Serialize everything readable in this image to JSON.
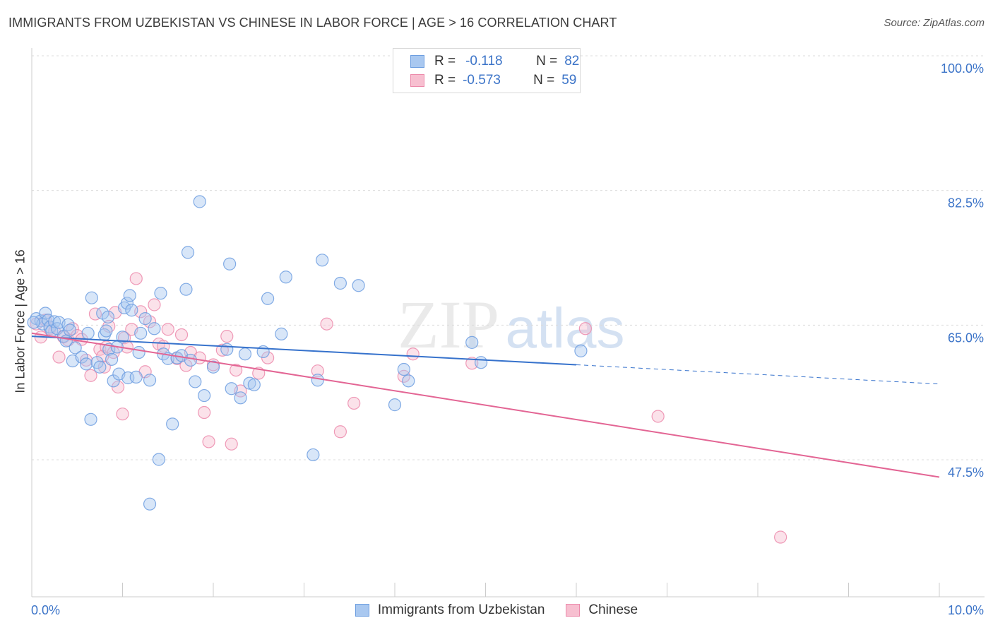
{
  "title": "IMMIGRANTS FROM UZBEKISTAN VS CHINESE IN LABOR FORCE | AGE > 16 CORRELATION CHART",
  "source": "Source: ZipAtlas.com",
  "watermark": {
    "zip": "ZIP",
    "atlas": "atlas"
  },
  "stat_legend": [
    {
      "r_label": "R =",
      "r_value": "-0.118",
      "n_label": "N =",
      "n_value": "82",
      "fill": "#a9c8f0",
      "stroke": "#6d9ee0"
    },
    {
      "r_label": "R =",
      "r_value": "-0.573",
      "n_label": "N =",
      "n_value": "59",
      "fill": "#f7bfd0",
      "stroke": "#ec8aab"
    }
  ],
  "chart_data": {
    "type": "scatter",
    "xlabel": "",
    "ylabel": "In Labor Force | Age > 16",
    "xlim": [
      0,
      10
    ],
    "ylim": [
      32.5,
      102.5
    ],
    "x_tick_labels": [
      "0.0%",
      "10.0%"
    ],
    "y_ticks": [
      47.5,
      65.0,
      82.5,
      100.0
    ],
    "y_tick_labels": [
      "47.5%",
      "65.0%",
      "82.5%",
      "100.0%"
    ],
    "grid": true,
    "legend": "bottom-center",
    "series": [
      {
        "name": "Immigrants from Uzbekistan",
        "color": "#6d9ee0",
        "fill": "#a9c8f0",
        "line_color": "#3672cc",
        "trend": {
          "x0": 0.0,
          "y0": 65.2,
          "x1": 6.0,
          "y1": 61.5,
          "dash_x1": 10.0,
          "dash_y1": 59.0
        },
        "points": [
          [
            0.05,
            67.5
          ],
          [
            0.1,
            67.2
          ],
          [
            0.12,
            66.8
          ],
          [
            0.15,
            68.2
          ],
          [
            0.18,
            67.3
          ],
          [
            0.2,
            66.4
          ],
          [
            0.22,
            65.9
          ],
          [
            0.25,
            67.1
          ],
          [
            0.28,
            66.2
          ],
          [
            0.3,
            67.0
          ],
          [
            0.35,
            65.2
          ],
          [
            0.38,
            64.6
          ],
          [
            0.4,
            66.7
          ],
          [
            0.42,
            66.0
          ],
          [
            0.45,
            62.0
          ],
          [
            0.48,
            63.7
          ],
          [
            0.55,
            62.5
          ],
          [
            0.6,
            61.6
          ],
          [
            0.62,
            65.6
          ],
          [
            0.65,
            54.4
          ],
          [
            0.66,
            70.2
          ],
          [
            0.72,
            61.8
          ],
          [
            0.75,
            61.2
          ],
          [
            0.78,
            68.2
          ],
          [
            0.8,
            65.4
          ],
          [
            0.82,
            65.9
          ],
          [
            0.84,
            67.7
          ],
          [
            0.85,
            63.5
          ],
          [
            0.88,
            62.2
          ],
          [
            0.9,
            59.4
          ],
          [
            0.94,
            63.8
          ],
          [
            0.96,
            60.3
          ],
          [
            1.0,
            65.1
          ],
          [
            1.02,
            68.9
          ],
          [
            1.05,
            69.5
          ],
          [
            1.06,
            59.8
          ],
          [
            1.08,
            70.5
          ],
          [
            1.1,
            68.6
          ],
          [
            1.15,
            59.9
          ],
          [
            1.18,
            63.1
          ],
          [
            1.2,
            65.6
          ],
          [
            1.25,
            67.5
          ],
          [
            1.3,
            59.5
          ],
          [
            1.35,
            66.2
          ],
          [
            1.4,
            49.2
          ],
          [
            1.42,
            70.8
          ],
          [
            1.45,
            62.9
          ],
          [
            1.5,
            62.3
          ],
          [
            1.55,
            53.8
          ],
          [
            1.6,
            62.4
          ],
          [
            1.65,
            62.7
          ],
          [
            1.7,
            71.3
          ],
          [
            1.72,
            76.1
          ],
          [
            1.75,
            62.1
          ],
          [
            1.8,
            59.3
          ],
          [
            1.85,
            82.7
          ],
          [
            1.9,
            57.5
          ],
          [
            2.0,
            61.2
          ],
          [
            2.15,
            63.5
          ],
          [
            2.18,
            74.6
          ],
          [
            2.2,
            58.4
          ],
          [
            2.3,
            57.2
          ],
          [
            2.35,
            62.9
          ],
          [
            2.4,
            59.1
          ],
          [
            2.45,
            58.9
          ],
          [
            2.55,
            63.2
          ],
          [
            2.6,
            70.1
          ],
          [
            2.75,
            65.5
          ],
          [
            2.8,
            72.9
          ],
          [
            3.1,
            49.8
          ],
          [
            3.15,
            59.5
          ],
          [
            3.2,
            75.1
          ],
          [
            3.4,
            72.1
          ],
          [
            3.6,
            71.8
          ],
          [
            4.0,
            56.3
          ],
          [
            4.1,
            60.9
          ],
          [
            4.15,
            59.4
          ],
          [
            4.85,
            64.4
          ],
          [
            4.95,
            61.8
          ],
          [
            6.05,
            63.3
          ],
          [
            1.3,
            43.4
          ],
          [
            0.02,
            67.0
          ]
        ]
      },
      {
        "name": "Chinese",
        "color": "#ec8aab",
        "fill": "#f7bfd0",
        "line_color": "#e36594",
        "trend": {
          "x0": 0.0,
          "y0": 65.6,
          "x1": 10.0,
          "y1": 46.9
        },
        "points": [
          [
            0.05,
            66.8
          ],
          [
            0.1,
            65.1
          ],
          [
            0.15,
            67.3
          ],
          [
            0.2,
            66.2
          ],
          [
            0.25,
            65.8
          ],
          [
            0.3,
            62.5
          ],
          [
            0.35,
            65.1
          ],
          [
            0.4,
            64.7
          ],
          [
            0.45,
            66.2
          ],
          [
            0.5,
            65.3
          ],
          [
            0.55,
            64.8
          ],
          [
            0.6,
            62.1
          ],
          [
            0.65,
            60.1
          ],
          [
            0.7,
            68.1
          ],
          [
            0.75,
            63.5
          ],
          [
            0.78,
            62.6
          ],
          [
            0.8,
            61.2
          ],
          [
            0.82,
            63.8
          ],
          [
            0.85,
            66.5
          ],
          [
            0.9,
            63.1
          ],
          [
            0.92,
            68.3
          ],
          [
            0.95,
            58.6
          ],
          [
            1.0,
            55.1
          ],
          [
            1.02,
            65.0
          ],
          [
            1.05,
            63.8
          ],
          [
            1.1,
            66.1
          ],
          [
            1.15,
            72.7
          ],
          [
            1.2,
            68.4
          ],
          [
            1.25,
            60.6
          ],
          [
            1.3,
            67.1
          ],
          [
            1.35,
            69.3
          ],
          [
            1.4,
            64.2
          ],
          [
            1.45,
            63.9
          ],
          [
            1.5,
            66.1
          ],
          [
            1.6,
            62.3
          ],
          [
            1.65,
            65.4
          ],
          [
            1.7,
            61.4
          ],
          [
            1.75,
            63.1
          ],
          [
            1.85,
            62.4
          ],
          [
            1.9,
            55.3
          ],
          [
            1.95,
            51.5
          ],
          [
            2.0,
            61.5
          ],
          [
            2.1,
            63.4
          ],
          [
            2.15,
            65.2
          ],
          [
            2.2,
            51.2
          ],
          [
            2.25,
            60.8
          ],
          [
            2.3,
            58.1
          ],
          [
            2.5,
            60.4
          ],
          [
            2.6,
            62.4
          ],
          [
            3.15,
            60.7
          ],
          [
            3.25,
            66.8
          ],
          [
            3.4,
            52.8
          ],
          [
            3.55,
            56.5
          ],
          [
            4.1,
            60.0
          ],
          [
            4.2,
            62.9
          ],
          [
            4.85,
            61.7
          ],
          [
            6.1,
            66.2
          ],
          [
            6.9,
            54.8
          ],
          [
            8.25,
            39.1
          ]
        ]
      }
    ]
  }
}
